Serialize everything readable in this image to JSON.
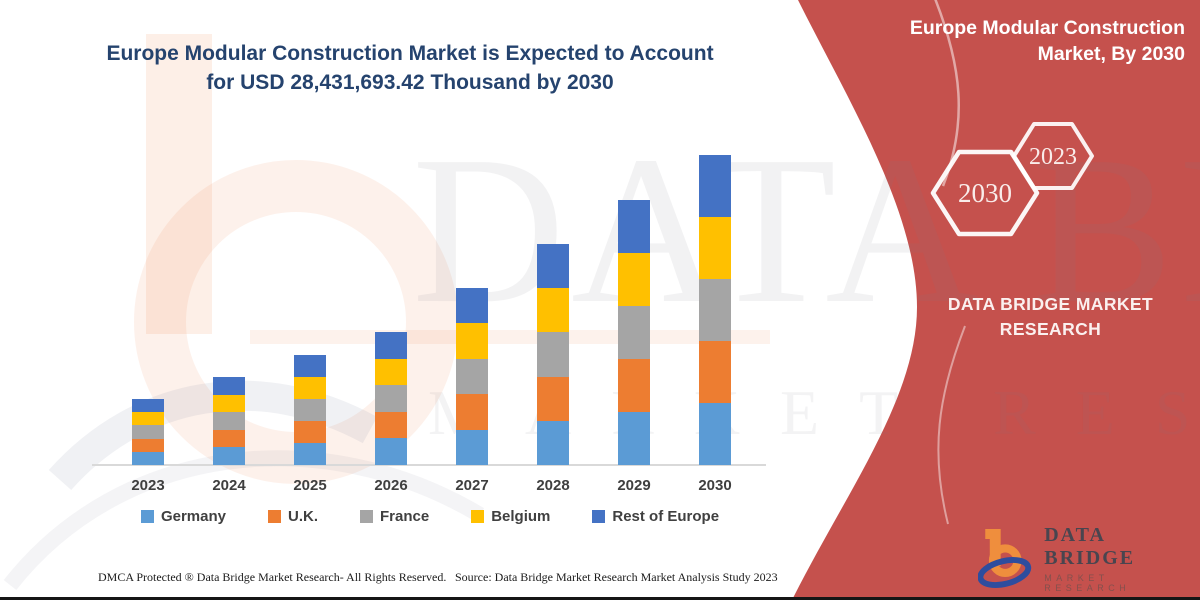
{
  "header": {
    "title_line1": "Europe Modular Construction Market is Expected to Account",
    "title_line2": "for USD 28,431,693.42 Thousand  by 2030"
  },
  "side_panel": {
    "title": "Europe Modular Construction Market, By 2030",
    "hexagons": [
      {
        "label": "2030"
      },
      {
        "label": "2023"
      }
    ],
    "brand": "DATA BRIDGE MARKET RESEARCH",
    "accent_color": "#c5514d"
  },
  "watermark": {
    "line1": "DATA BRIDGE",
    "line2": "MARKET RESEARCH"
  },
  "logo": {
    "name": "DATA BRIDGE",
    "tagline": "MARKET RESEARCH"
  },
  "footer": {
    "left": "DMCA Protected ® Data Bridge Market Research-  All Rights Reserved.",
    "source": "Source: Data Bridge Market Research  Market Analysis Study 2023"
  },
  "chart_data": {
    "type": "bar",
    "stacked": true,
    "title": "Europe Modular Construction Market is Expected to Account for USD 28,431,693.42 Thousand by 2030",
    "unit": "USD Thousand",
    "categories": [
      "2023",
      "2024",
      "2025",
      "2026",
      "2027",
      "2028",
      "2029",
      "2030"
    ],
    "series": [
      {
        "name": "Germany",
        "color": "#5b9bd5",
        "values": [
          1210000,
          1614000,
          2018000,
          2440000,
          3246000,
          4054000,
          4860000,
          5686338.68
        ]
      },
      {
        "name": "U.K.",
        "color": "#ed7d31",
        "values": [
          1210000,
          1614000,
          2018000,
          2440000,
          3246000,
          4054000,
          4860000,
          5686338.68
        ]
      },
      {
        "name": "France",
        "color": "#a5a5a5",
        "values": [
          1210000,
          1614000,
          2018000,
          2440000,
          3246000,
          4054000,
          4860000,
          5686338.68
        ]
      },
      {
        "name": "Belgium",
        "color": "#ffc000",
        "values": [
          1210000,
          1614000,
          2018000,
          2440000,
          3246000,
          4054000,
          4860000,
          5686338.68
        ]
      },
      {
        "name": "Rest of Europe",
        "color": "#4472c4",
        "values": [
          1210000,
          1614000,
          2018000,
          2440000,
          3246000,
          4054000,
          4860000,
          5686338.68
        ]
      }
    ],
    "totals_estimated": [
      6050000,
      8070000,
      10090000,
      12200000,
      16230000,
      20270000,
      24300000,
      28431693.42
    ],
    "stated_2030_total": 28431693.42,
    "y_axis_visible": false,
    "gridlines": false,
    "legend_position": "bottom",
    "note": "Series values estimated from stacked bar segment heights; 2030 total stated in title."
  }
}
